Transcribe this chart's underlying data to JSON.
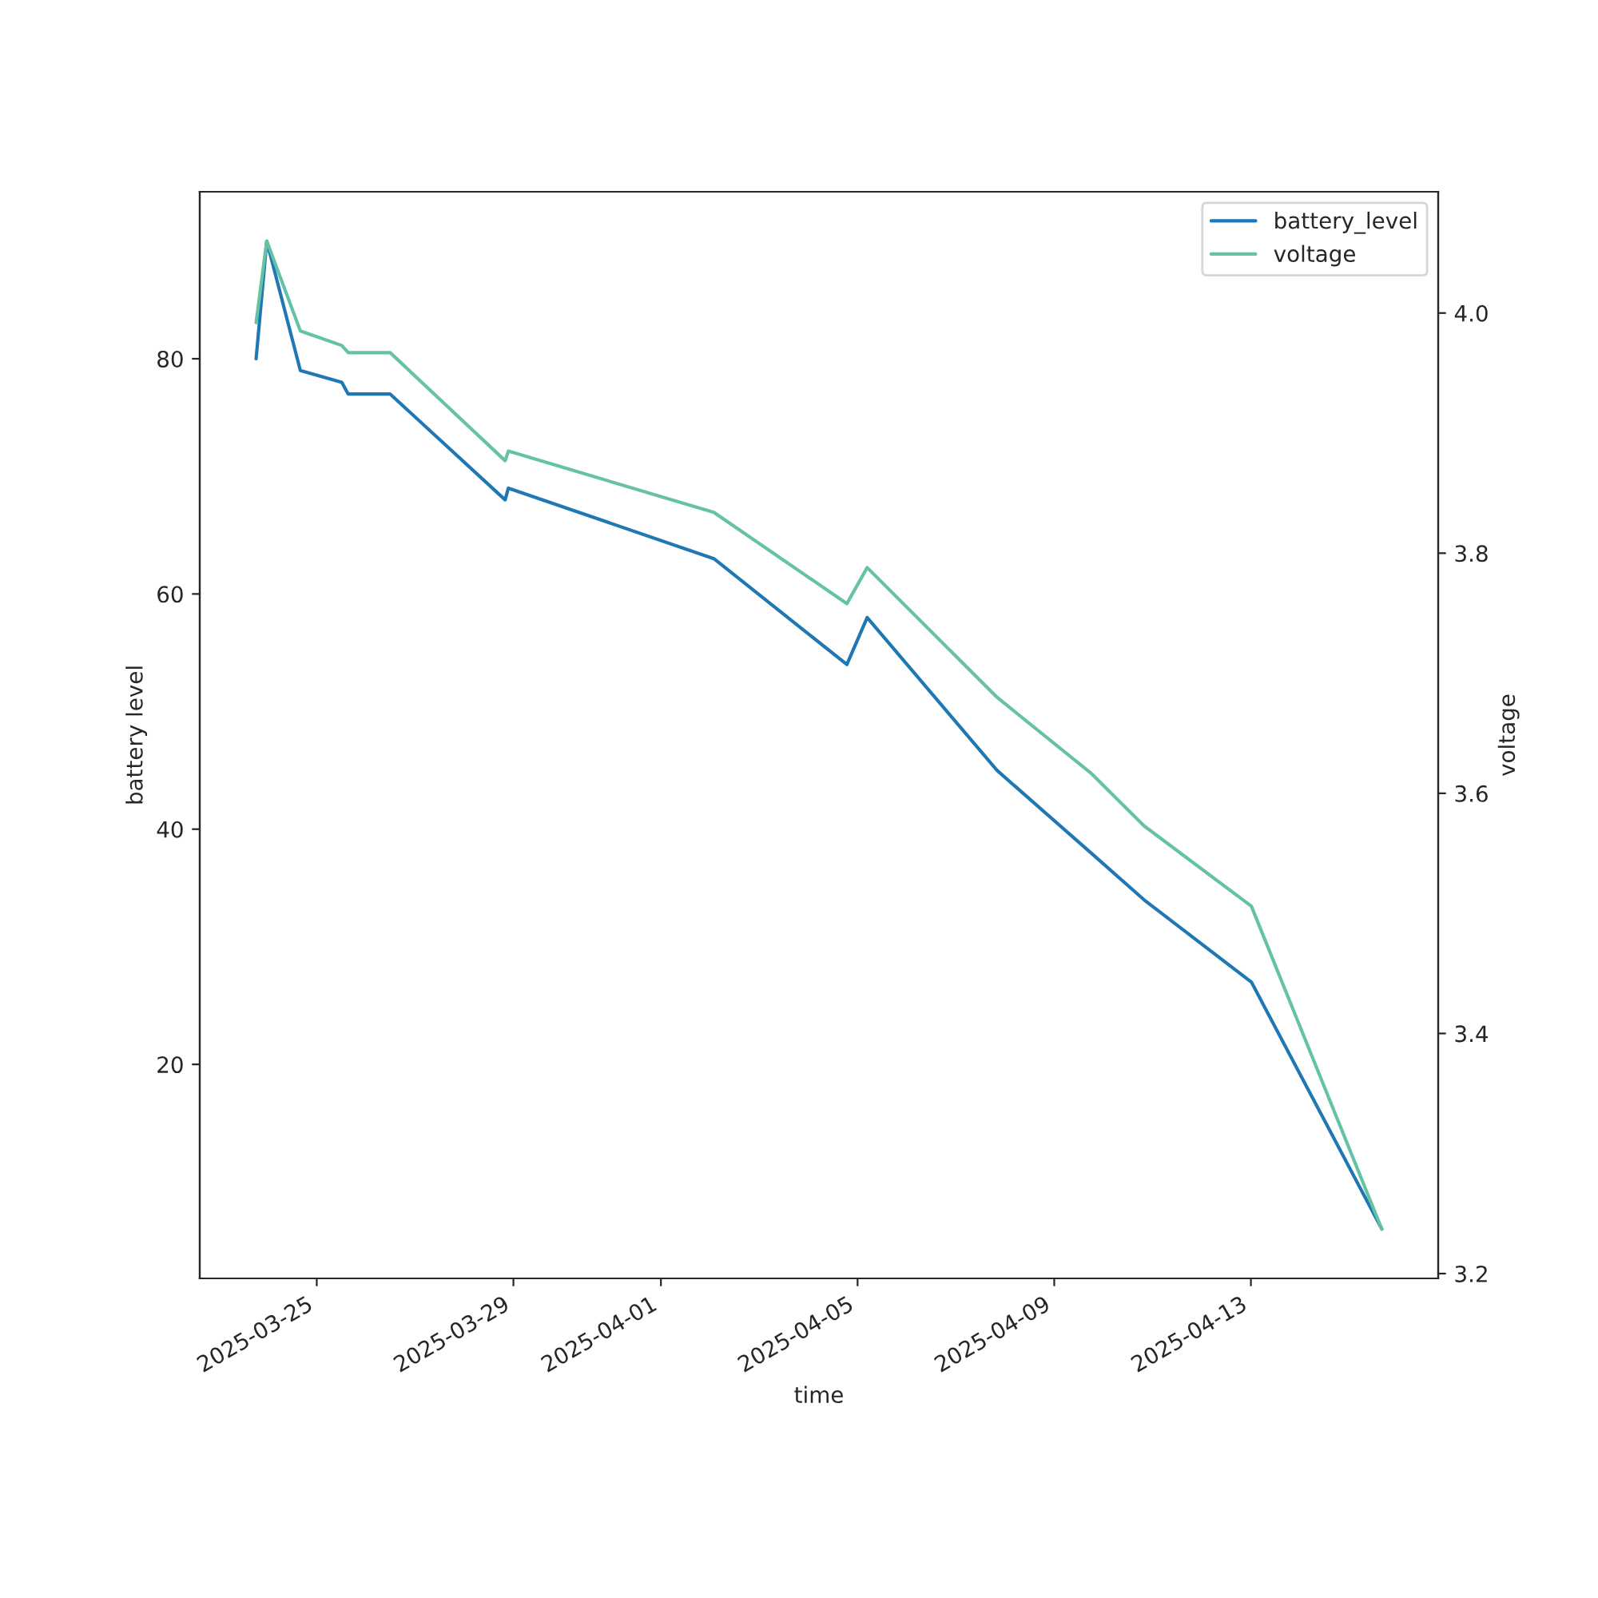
{
  "chart_data": {
    "type": "line",
    "xlabel": "time",
    "ylabel": "battery level",
    "y2label": "voltage",
    "x": [
      "2025-03-23T18:24",
      "2025-03-23T23:36",
      "2025-03-24T16:00",
      "2025-03-25T12:14",
      "2025-03-25T15:21",
      "2025-03-26T11:51",
      "2025-03-28T19:58",
      "2025-03-28T21:32",
      "2025-04-02T01:51",
      "2025-04-04T18:47",
      "2025-04-05T04:41",
      "2025-04-07T20:04",
      "2025-04-09T17:48",
      "2025-04-10T19:47",
      "2025-04-13T00:14",
      "2025-04-15T15:55"
    ],
    "series": [
      {
        "name": "battery_level",
        "color": "#1f77b4",
        "values": [
          80,
          90,
          79,
          78,
          77,
          77,
          68,
          69,
          63,
          54,
          58,
          45,
          38,
          34,
          27,
          6
        ]
      },
      {
        "name": "voltage",
        "color": "#66c2a5",
        "axis": "y2",
        "values": [
          3.992,
          4.06,
          3.985,
          3.973,
          3.967,
          3.967,
          3.877,
          3.885,
          3.834,
          3.758,
          3.788,
          3.68,
          3.617,
          3.573,
          3.506,
          3.237
        ]
      }
    ],
    "xlim": [
      "2025-03-22T14:53",
      "2025-04-16T19:26"
    ],
    "xticks": [
      "2025-03-25",
      "2025-03-29",
      "2025-04-01",
      "2025-04-05",
      "2025-04-09",
      "2025-04-13"
    ],
    "ylim": [
      1.8,
      94.2
    ],
    "yticks": [
      20,
      40,
      60,
      80
    ],
    "y2lim": [
      3.196,
      4.101
    ],
    "y2ticks": [
      {
        "value": 3.2,
        "label": "3.2"
      },
      {
        "value": 3.4,
        "label": "3.4"
      },
      {
        "value": 3.6,
        "label": "3.6"
      },
      {
        "value": 3.8,
        "label": "3.8"
      },
      {
        "value": 4.0,
        "label": "4.0"
      }
    ],
    "legend": "top right",
    "grid": false,
    "marker": "none",
    "line_style": "solid"
  }
}
